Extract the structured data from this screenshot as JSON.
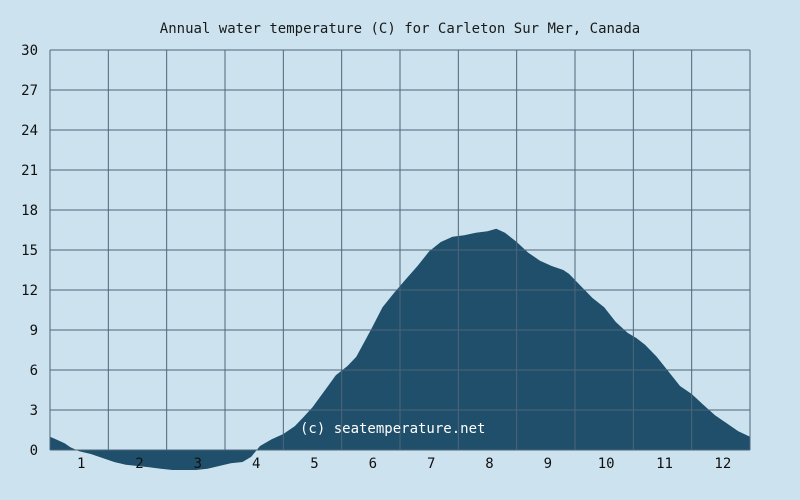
{
  "colors": {
    "background": "#cce3ef",
    "area": "#1f4f6b",
    "grid": "#4d6678",
    "text": "#111111",
    "watermark": "#ffffff"
  },
  "chart_data": {
    "type": "area",
    "title": "Annual water temperature (C) for Carleton Sur Mer, Canada",
    "xlabel": "",
    "ylabel": "",
    "xlim": [
      0.5,
      12.5
    ],
    "ylim": [
      0,
      30
    ],
    "yticks": [
      0,
      3,
      6,
      9,
      12,
      15,
      18,
      21,
      24,
      27,
      30
    ],
    "xticks": [
      1,
      2,
      3,
      4,
      5,
      6,
      7,
      8,
      9,
      10,
      11,
      12
    ],
    "grid": true,
    "watermark": "(c) seatemperature.net",
    "x": [
      0.5,
      0.6,
      0.75,
      0.85,
      1.0,
      1.2,
      1.4,
      1.6,
      1.8,
      2.0,
      2.2,
      2.4,
      2.6,
      2.8,
      3.0,
      3.2,
      3.4,
      3.6,
      3.8,
      3.95,
      4.1,
      4.3,
      4.5,
      4.7,
      4.85,
      5.0,
      5.2,
      5.4,
      5.6,
      5.75,
      6.0,
      6.2,
      6.4,
      6.6,
      6.8,
      7.0,
      7.2,
      7.4,
      7.6,
      7.8,
      8.0,
      8.15,
      8.3,
      8.5,
      8.7,
      8.9,
      9.1,
      9.3,
      9.4,
      9.6,
      9.8,
      10.0,
      10.2,
      10.4,
      10.55,
      10.7,
      10.9,
      11.1,
      11.3,
      11.5,
      11.7,
      11.9,
      12.1,
      12.3,
      12.5
    ],
    "y": [
      1.0,
      0.8,
      0.5,
      0.2,
      -0.1,
      -0.3,
      -0.6,
      -0.9,
      -1.1,
      -1.2,
      -1.3,
      -1.4,
      -1.5,
      -1.5,
      -1.5,
      -1.4,
      -1.2,
      -1.0,
      -0.9,
      -0.5,
      0.3,
      0.8,
      1.2,
      1.8,
      2.5,
      3.2,
      4.4,
      5.6,
      6.3,
      7.0,
      9.0,
      10.7,
      11.8,
      12.8,
      13.8,
      14.9,
      15.6,
      16.0,
      16.1,
      16.3,
      16.4,
      16.6,
      16.3,
      15.6,
      14.8,
      14.2,
      13.8,
      13.5,
      13.2,
      12.3,
      11.4,
      10.7,
      9.6,
      8.8,
      8.4,
      7.9,
      7.0,
      5.9,
      4.8,
      4.2,
      3.4,
      2.6,
      2.0,
      1.4,
      1.0
    ]
  }
}
